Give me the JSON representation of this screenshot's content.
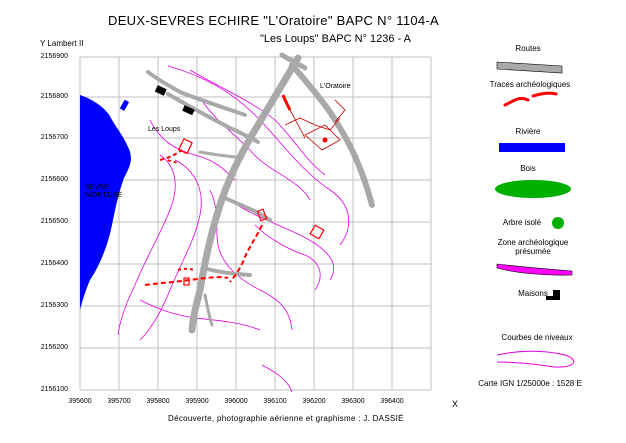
{
  "title": {
    "line1": "DEUX-SEVRES  ECHIRE  \"L'Oratoire\"  BAPC N° 1104-A",
    "line2": "\"Les Loups\"  BAPC N° 1236 - A"
  },
  "axes": {
    "y_label": "Y  Lambert II",
    "x_label": "X",
    "y_ticks": [
      "2156900",
      "2156800",
      "2156700",
      "2156600",
      "2156500",
      "2156400",
      "2156300",
      "2156200",
      "2156100"
    ],
    "x_ticks": [
      "395600",
      "395700",
      "395800",
      "395900",
      "396000",
      "396100",
      "396200",
      "396300",
      "396400"
    ]
  },
  "map_labels": {
    "oratoire": "L'Oratoire",
    "les_loups": "Les Loups",
    "sevre_1": "SEVRE",
    "sevre_2": "NIORTAISE"
  },
  "legend": {
    "routes": "Routes",
    "traces": "Traces archéologiques",
    "riviere": "Rivière",
    "bois": "Bois",
    "arbre": "Arbre isolé",
    "zone_1": "Zone archéologique",
    "zone_2": "présumée",
    "maisons": "Maisons",
    "courbes": "Courbes de niveaux",
    "carte": "Carte IGN 1/25000e : 1528 E"
  },
  "credit": "Découverte, photographie aérienne et graphisme : J. DASSIÉ",
  "colors": {
    "road": "#a9a9a9",
    "trace": "#ff0000",
    "river": "#0000ff",
    "wood": "#00b000",
    "zone": "#ff00ff",
    "contour": "#e000e0",
    "grid": "#c0c0c0"
  }
}
